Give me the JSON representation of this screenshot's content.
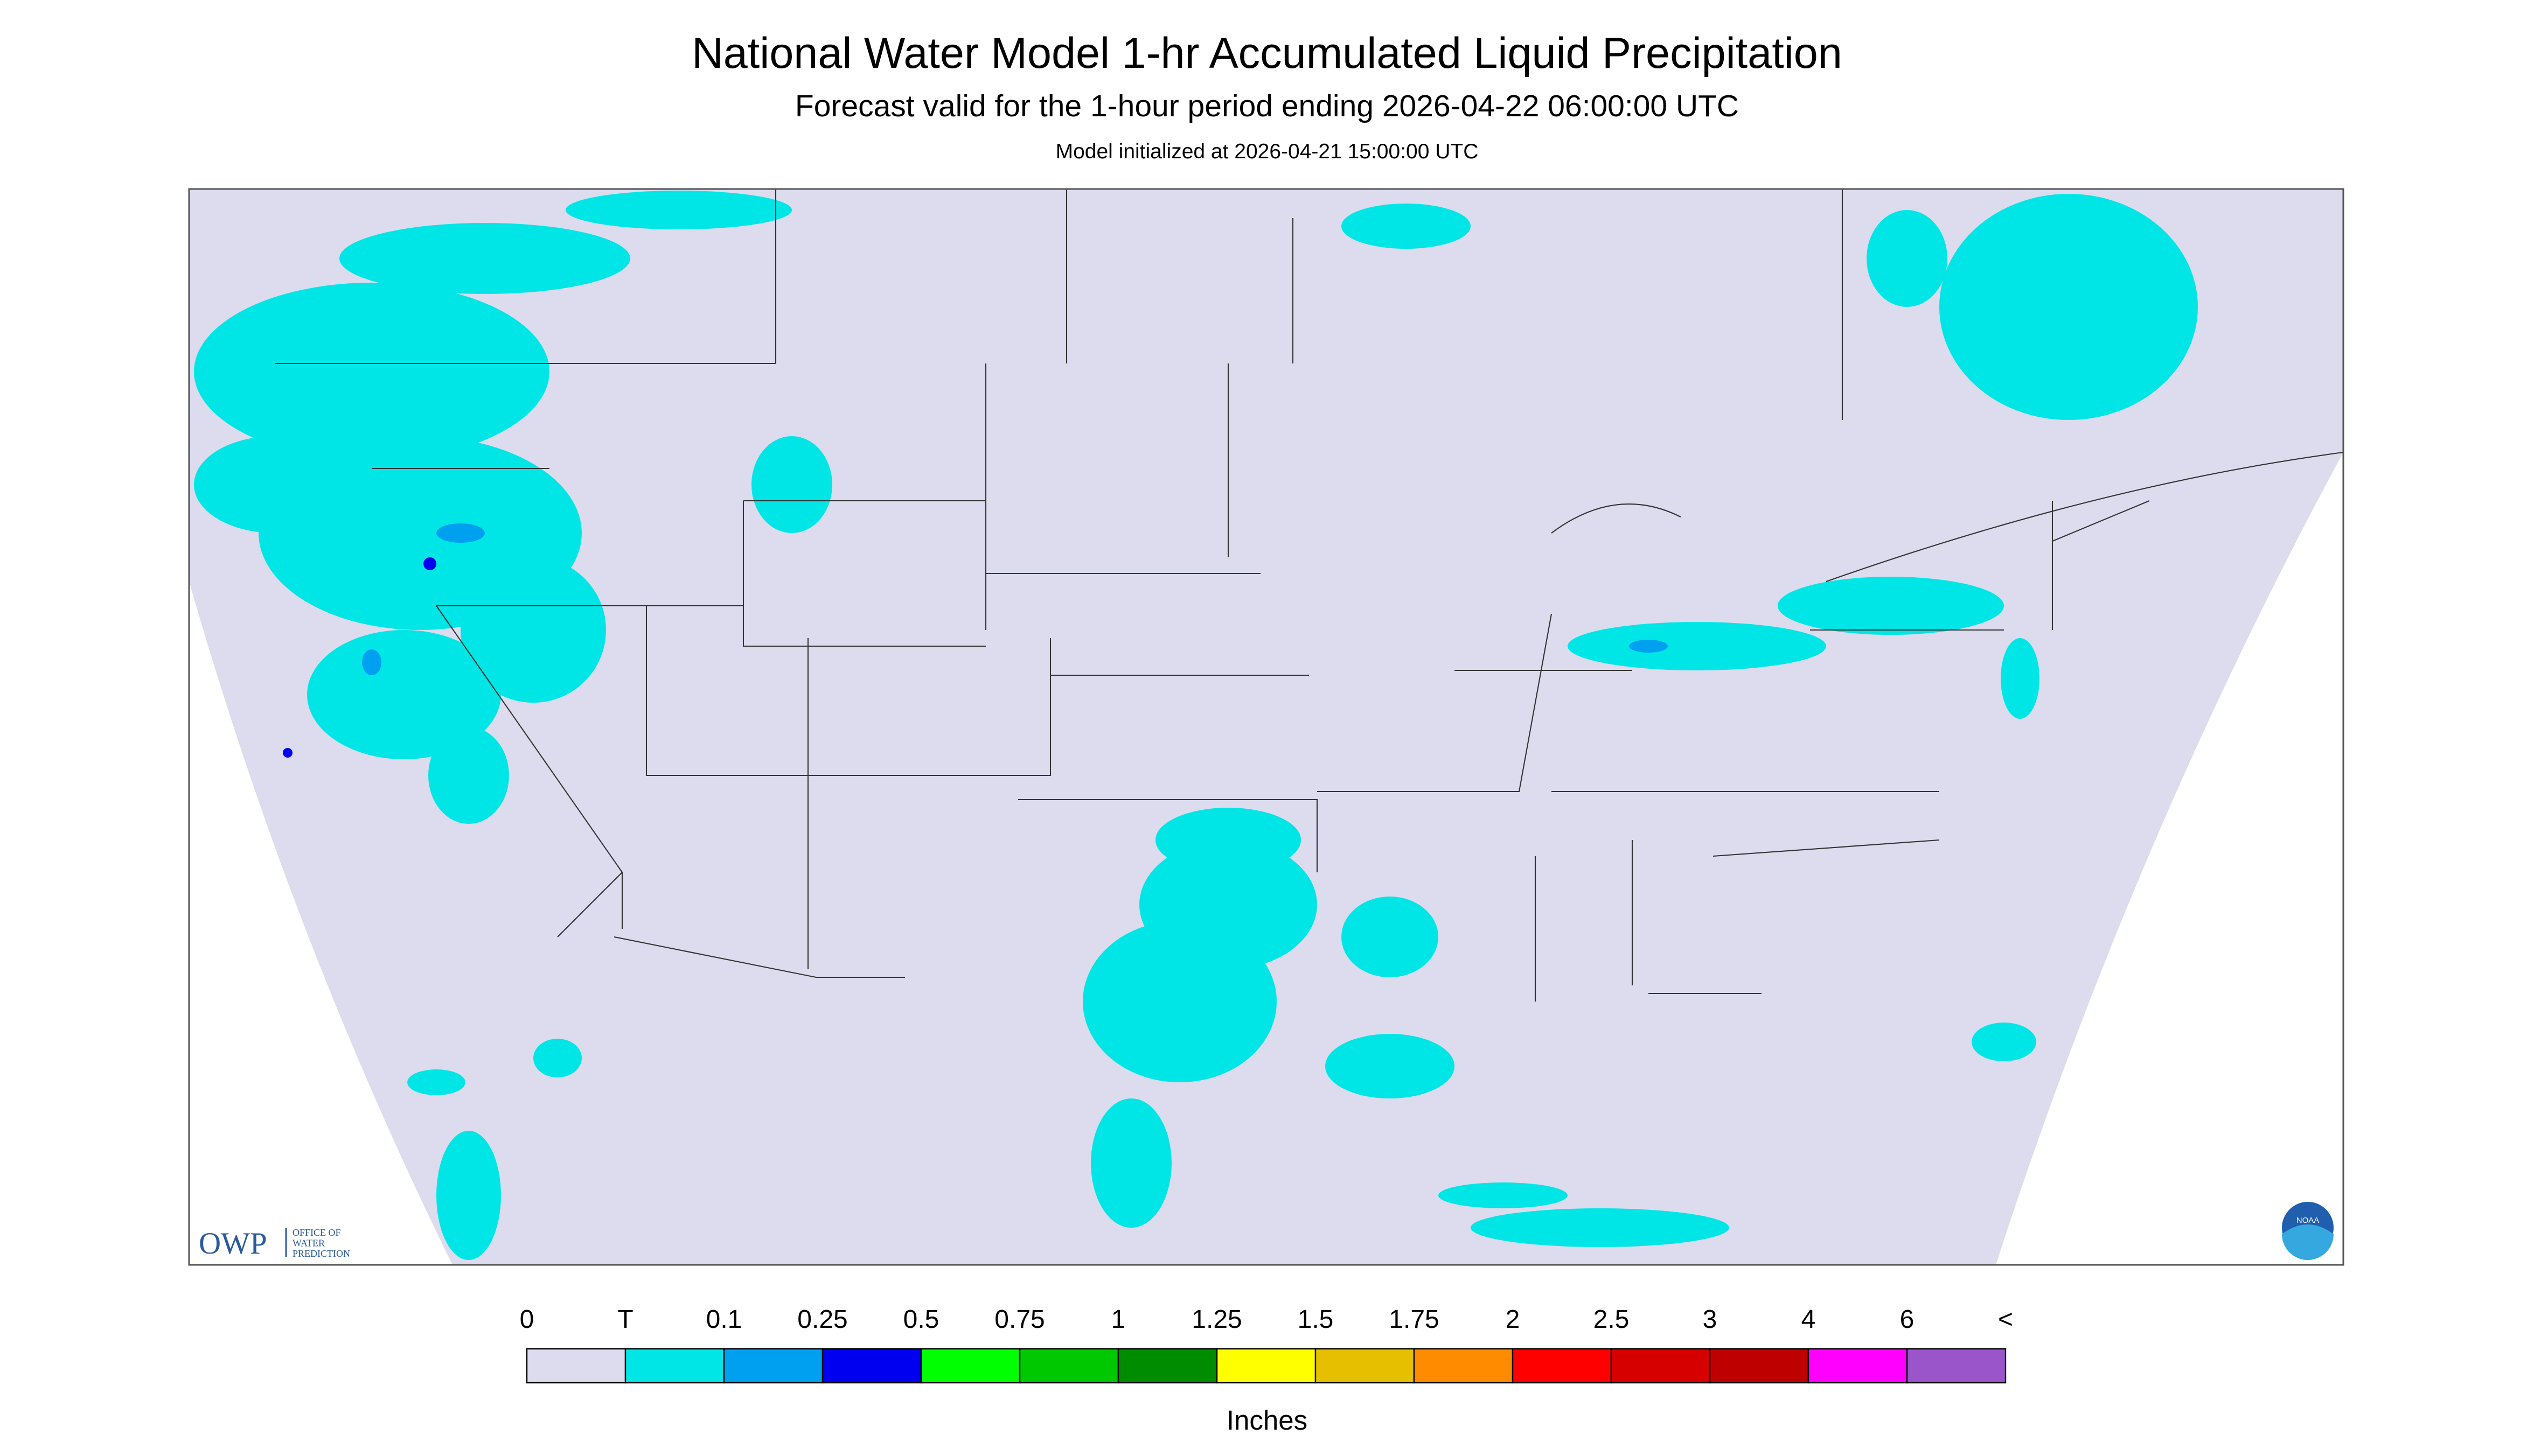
{
  "header": {
    "title": "National Water Model 1-hr Accumulated Liquid Precipitation",
    "subtitle": "Forecast valid for the 1-hour period ending 2026-04-22 06:00:00 UTC",
    "note": "Model initialized at 2026-04-21 15:00:00 UTC"
  },
  "legend": {
    "labels": [
      "0",
      "T",
      "0.1",
      "0.25",
      "0.5",
      "0.75",
      "1",
      "1.25",
      "1.5",
      "1.75",
      "2",
      "2.5",
      "3",
      "4",
      "6",
      "<"
    ],
    "colors": [
      "#dcdcee",
      "#00e6e6",
      "#00a0f0",
      "#0000f0",
      "#00ff00",
      "#00c800",
      "#008c00",
      "#ffff00",
      "#e6c000",
      "#ff8c00",
      "#ff0000",
      "#d70000",
      "#bf0000",
      "#ff00ff",
      "#9955c9"
    ],
    "unit": "Inches"
  },
  "logo": {
    "owp": "OWP",
    "owp_lines": [
      "OFFICE OF",
      "WATER",
      "PREDICTION"
    ],
    "noaa": "NOAA"
  }
}
